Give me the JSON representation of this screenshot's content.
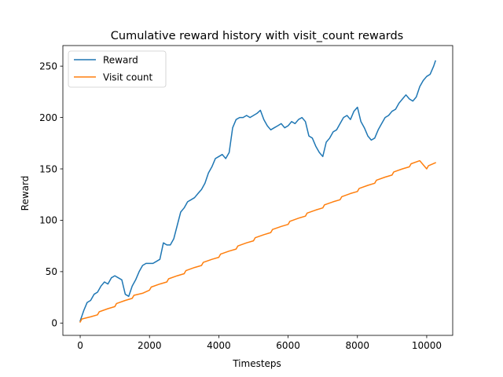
{
  "chart_data": {
    "type": "line",
    "title": "Cumulative reward history with visit_count rewards",
    "xlabel": "Timesteps",
    "ylabel": "Reward",
    "xlim": [
      -500,
      10750
    ],
    "ylim": [
      -12,
      270
    ],
    "xticks": [
      0,
      2000,
      4000,
      6000,
      8000,
      10000
    ],
    "yticks": [
      0,
      50,
      100,
      150,
      200,
      250
    ],
    "grid": false,
    "legend_position": "top-left",
    "series": [
      {
        "name": "Reward",
        "color": "#1f77b4",
        "x": [
          0,
          100,
          200,
          300,
          400,
          500,
          600,
          700,
          800,
          900,
          1000,
          1100,
          1200,
          1300,
          1400,
          1500,
          1600,
          1700,
          1800,
          1900,
          2000,
          2100,
          2200,
          2300,
          2400,
          2500,
          2600,
          2700,
          2800,
          2900,
          3000,
          3100,
          3200,
          3300,
          3400,
          3500,
          3600,
          3700,
          3800,
          3900,
          4000,
          4100,
          4200,
          4300,
          4400,
          4500,
          4600,
          4700,
          4800,
          4900,
          5000,
          5100,
          5200,
          5300,
          5400,
          5500,
          5600,
          5700,
          5800,
          5900,
          6000,
          6100,
          6200,
          6300,
          6400,
          6500,
          6600,
          6700,
          6800,
          6900,
          7000,
          7100,
          7200,
          7300,
          7400,
          7500,
          7600,
          7700,
          7800,
          7900,
          8000,
          8100,
          8200,
          8300,
          8400,
          8500,
          8600,
          8700,
          8800,
          8900,
          9000,
          9100,
          9200,
          9300,
          9400,
          9500,
          9600,
          9700,
          9800,
          9900,
          10000,
          10100,
          10200,
          10250
        ],
        "y": [
          2,
          12,
          20,
          22,
          28,
          30,
          36,
          40,
          38,
          44,
          46,
          44,
          42,
          28,
          26,
          36,
          42,
          50,
          56,
          58,
          58,
          58,
          60,
          62,
          78,
          76,
          76,
          82,
          95,
          108,
          112,
          118,
          120,
          122,
          126,
          130,
          136,
          146,
          152,
          160,
          162,
          164,
          160,
          166,
          190,
          198,
          200,
          200,
          202,
          200,
          202,
          204,
          207,
          198,
          192,
          188,
          190,
          192,
          194,
          190,
          192,
          196,
          194,
          198,
          200,
          196,
          182,
          180,
          172,
          166,
          162,
          176,
          180,
          186,
          188,
          194,
          200,
          202,
          198,
          206,
          210,
          196,
          190,
          182,
          178,
          180,
          188,
          194,
          200,
          202,
          206,
          208,
          214,
          218,
          222,
          218,
          216,
          220,
          230,
          236,
          240,
          242,
          250,
          255
        ]
      },
      {
        "name": "Visit count",
        "color": "#ff7f0e",
        "x": [
          0,
          50,
          300,
          500,
          550,
          800,
          1000,
          1050,
          1300,
          1500,
          1550,
          1800,
          2000,
          2050,
          2300,
          2500,
          2550,
          2800,
          3000,
          3050,
          3300,
          3500,
          3550,
          3800,
          4000,
          4050,
          4300,
          4500,
          4550,
          4800,
          5000,
          5050,
          5300,
          5500,
          5550,
          5800,
          6000,
          6050,
          6300,
          6500,
          6550,
          6800,
          7000,
          7050,
          7300,
          7500,
          7550,
          7800,
          8000,
          8050,
          8300,
          8500,
          8550,
          8800,
          9000,
          9050,
          9300,
          9500,
          9550,
          9800,
          10000,
          10050,
          10250
        ],
        "y": [
          1,
          4,
          6,
          8,
          11,
          14,
          16,
          19,
          22,
          24,
          27,
          29,
          32,
          35,
          38,
          40,
          43,
          46,
          48,
          51,
          54,
          56,
          59,
          62,
          64,
          67,
          70,
          72,
          75,
          78,
          80,
          83,
          86,
          88,
          91,
          94,
          96,
          99,
          102,
          104,
          107,
          110,
          112,
          115,
          118,
          120,
          123,
          126,
          128,
          131,
          134,
          136,
          139,
          142,
          144,
          147,
          150,
          152,
          155,
          158,
          150,
          153,
          156
        ]
      }
    ]
  }
}
